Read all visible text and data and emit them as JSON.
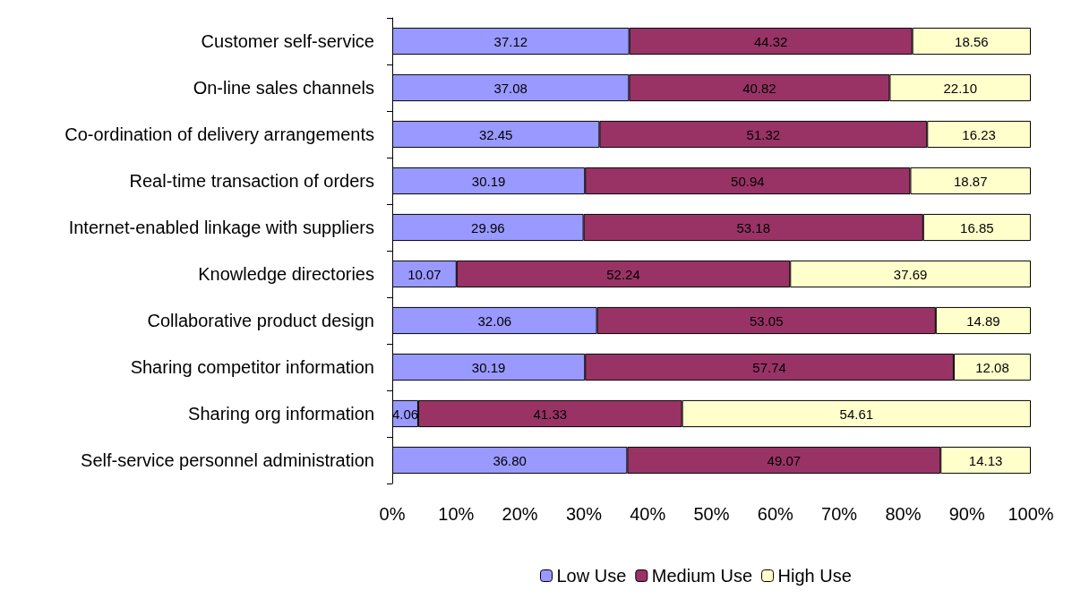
{
  "chart_data": {
    "type": "bar",
    "orientation": "horizontal",
    "stacked": true,
    "categories": [
      "Customer self-service",
      "On-line sales channels",
      "Co-ordination of delivery arrangements",
      "Real-time transaction of orders",
      "Internet-enabled linkage with suppliers",
      "Knowledge directories",
      "Collaborative product design",
      "Sharing competitor information",
      "Sharing org information",
      "Self-service personnel administration"
    ],
    "series": [
      {
        "name": "Low Use",
        "color": "#9999ff",
        "values": [
          37.12,
          37.08,
          32.45,
          30.19,
          29.96,
          10.07,
          32.06,
          30.19,
          4.06,
          36.8
        ],
        "value_labels": [
          "37.12",
          "37.08",
          "32.45",
          "30.19",
          "29.96",
          "10.07",
          "32.06",
          "30.19",
          "4.06",
          "36.80"
        ]
      },
      {
        "name": "Medium Use",
        "color": "#993366",
        "values": [
          44.32,
          40.82,
          51.32,
          50.94,
          53.18,
          52.24,
          53.05,
          57.74,
          41.33,
          49.07
        ],
        "value_labels": [
          "44.32",
          "40.82",
          "51.32",
          "50.94",
          "53.18",
          "52.24",
          "53.05",
          "57.74",
          "41.33",
          "49.07"
        ]
      },
      {
        "name": "High Use",
        "color": "#ffffcc",
        "values": [
          18.56,
          22.1,
          16.23,
          18.87,
          16.85,
          37.69,
          14.89,
          12.08,
          54.61,
          14.13
        ],
        "value_labels": [
          "18.56",
          "22.10",
          "16.23",
          "18.87",
          "16.85",
          "37.69",
          "14.89",
          "12.08",
          "54.61",
          "14.13"
        ]
      }
    ],
    "xlim": [
      0,
      100
    ],
    "xticks": [
      {
        "value": 0,
        "label": "0%"
      },
      {
        "value": 10,
        "label": "10%"
      },
      {
        "value": 20,
        "label": "20%"
      },
      {
        "value": 30,
        "label": "30%"
      },
      {
        "value": 40,
        "label": "40%"
      },
      {
        "value": 50,
        "label": "50%"
      },
      {
        "value": 60,
        "label": "60%"
      },
      {
        "value": 70,
        "label": "70%"
      },
      {
        "value": 80,
        "label": "80%"
      },
      {
        "value": 90,
        "label": "90%"
      },
      {
        "value": 100,
        "label": "100%"
      }
    ],
    "grid": false,
    "legend": "bottom"
  }
}
